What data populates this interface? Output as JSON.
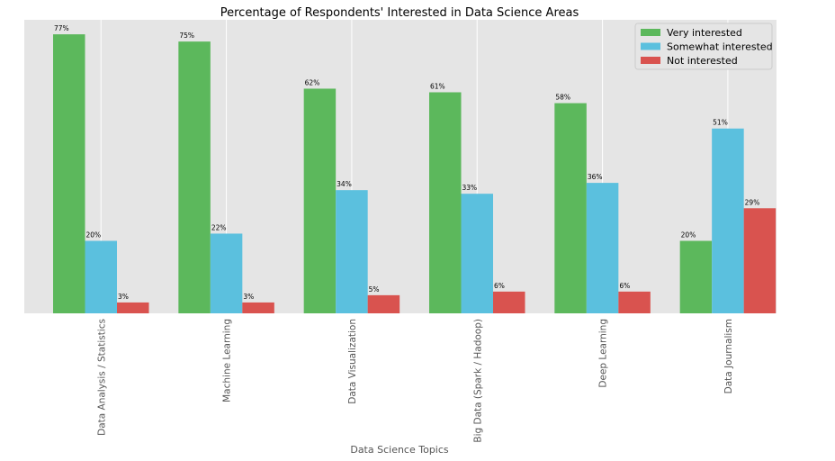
{
  "chart_data": {
    "type": "bar",
    "title": "Percentage of Respondents' Interested in Data Science Areas",
    "xlabel": "Data Science Topics",
    "ylabel": "",
    "categories": [
      "Data Analysis / Statistics",
      "Machine Learning",
      "Data Visualization",
      "Big Data (Spark / Hadoop)",
      "Deep Learning",
      "Data Journalism"
    ],
    "series": [
      {
        "name": "Very interested",
        "values": [
          77,
          75,
          62,
          61,
          58,
          20
        ],
        "labels": [
          "77%",
          "75%",
          "62%",
          "61%",
          "58%",
          "20%"
        ],
        "color": "#5cb85c"
      },
      {
        "name": "Somewhat interested",
        "values": [
          20,
          22,
          34,
          33,
          36,
          51
        ],
        "labels": [
          "20%",
          "22%",
          "34%",
          "33%",
          "36%",
          "51%"
        ],
        "color": "#5bc0de"
      },
      {
        "name": "Not interested",
        "values": [
          3,
          3,
          5,
          6,
          6,
          29
        ],
        "labels": [
          "3%",
          "3%",
          "5%",
          "6%",
          "6%",
          "29%"
        ],
        "color": "#d9534f"
      }
    ],
    "ylim": [
      0,
      81
    ],
    "grid": true,
    "y_axis_visible": false,
    "legend": "top-right",
    "background": "#e5e5e5",
    "gridline_color": "#ffffff"
  }
}
